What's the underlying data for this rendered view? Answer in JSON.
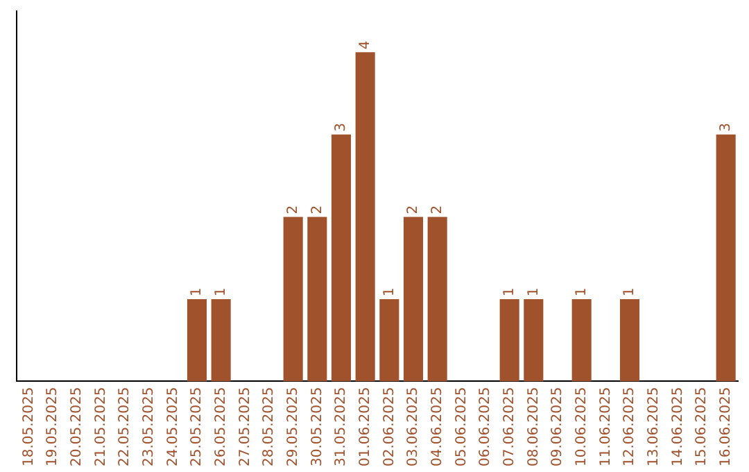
{
  "chart_data": {
    "type": "bar",
    "categories": [
      "18.05.2025",
      "19.05.2025",
      "20.05.2025",
      "21.05.2025",
      "22.05.2025",
      "23.05.2025",
      "24.05.2025",
      "25.05.2025",
      "26.05.2025",
      "27.05.2025",
      "28.05.2025",
      "29.05.2025",
      "30.05.2025",
      "31.05.2025",
      "01.06.2025",
      "02.06.2025",
      "03.06.2025",
      "04.06.2025",
      "05.06.2025",
      "06.06.2025",
      "07.06.2025",
      "08.06.2025",
      "09.06.2025",
      "10.06.2025",
      "11.06.2025",
      "12.06.2025",
      "13.06.2025",
      "14.06.2025",
      "15.06.2025",
      "16.06.2025"
    ],
    "values": [
      0,
      0,
      0,
      0,
      0,
      0,
      0,
      1,
      1,
      0,
      0,
      2,
      2,
      3,
      4,
      1,
      2,
      2,
      0,
      0,
      1,
      1,
      0,
      1,
      0,
      1,
      0,
      0,
      0,
      3
    ],
    "value_labels": [
      null,
      null,
      null,
      null,
      null,
      null,
      null,
      "1",
      "1",
      null,
      null,
      "2",
      "2",
      "3",
      "4",
      "1",
      "2",
      "2",
      null,
      null,
      "1",
      "1",
      null,
      "1",
      null,
      "1",
      null,
      null,
      null,
      "3"
    ],
    "color": "#a0522d",
    "grid": false,
    "legend": false,
    "tick_labels": "x"
  }
}
